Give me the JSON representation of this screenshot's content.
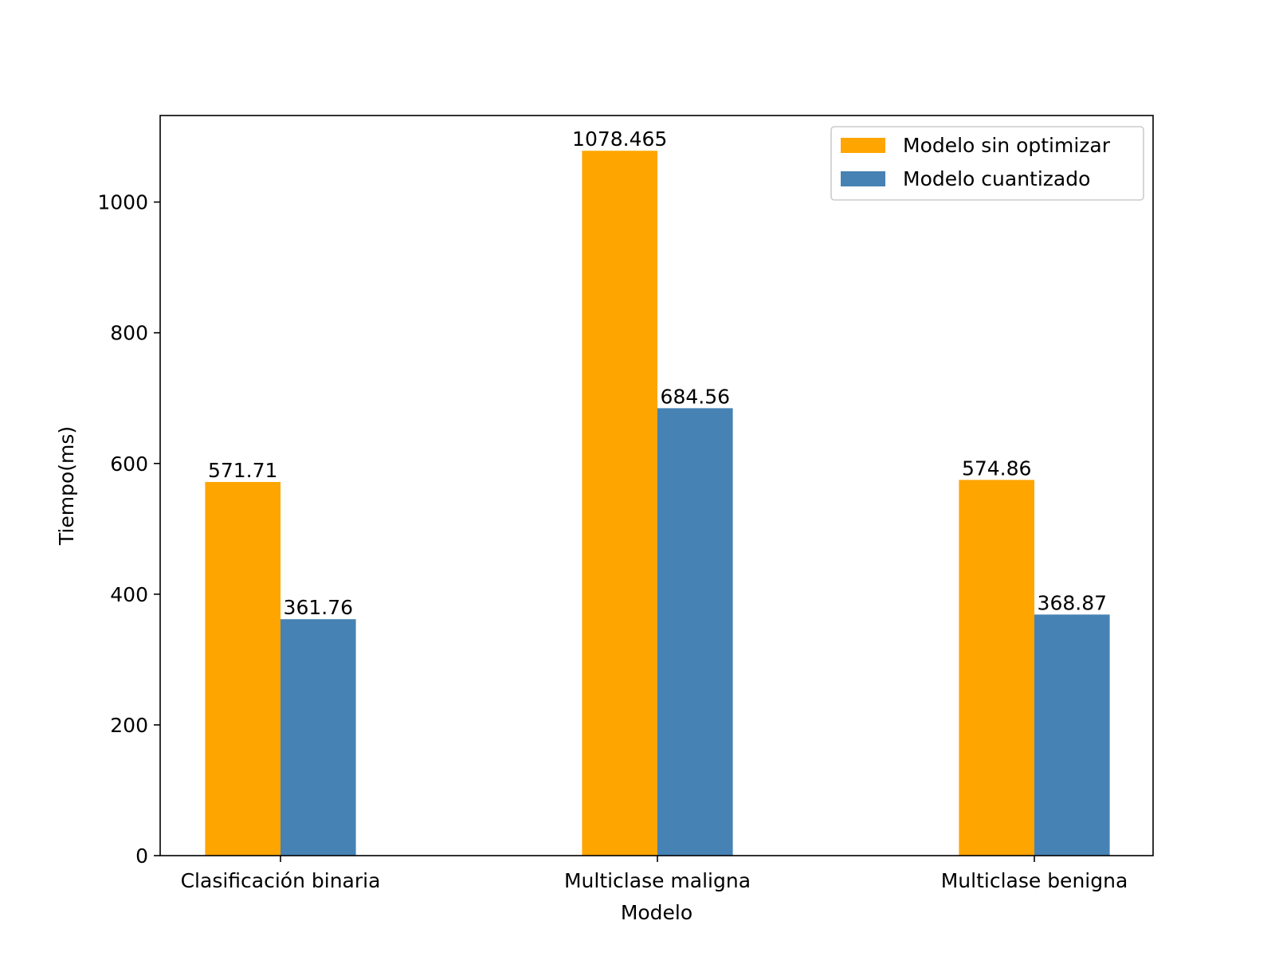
{
  "chart_data": {
    "type": "bar",
    "title": "",
    "xlabel": "Modelo",
    "ylabel": "Tiempo(ms)",
    "categories": [
      "Clasificación binaria",
      "Multiclase maligna",
      "Multiclase benigna"
    ],
    "series": [
      {
        "name": "Modelo sin optimizar",
        "color": "#FFA500",
        "values": [
          571.71,
          1078.465,
          574.86
        ],
        "labels": [
          "571.71",
          "1078.465",
          "574.86"
        ]
      },
      {
        "name": "Modelo cuantizado",
        "color": "#4682B4",
        "values": [
          361.76,
          684.56,
          368.87
        ],
        "labels": [
          "361.76",
          "684.56",
          "368.87"
        ]
      }
    ],
    "ylim": [
      0,
      1132.4
    ],
    "yticks": [
      0,
      200,
      400,
      600,
      800,
      1000
    ],
    "grid": false,
    "legend_position": "top-right"
  }
}
